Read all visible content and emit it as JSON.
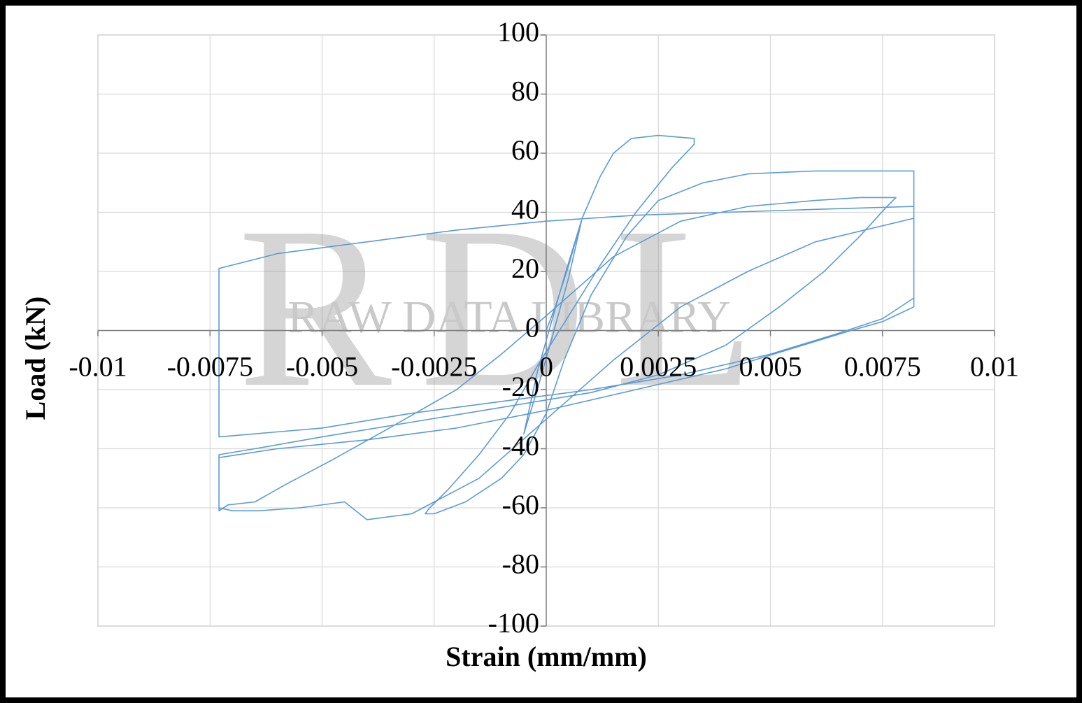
{
  "chart_data": {
    "type": "line",
    "x_label": "Strain (mm/mm)",
    "y_label": "Load (kN)",
    "watermark": {
      "logo": "RDL",
      "text": "RAW DATA LIBRARY"
    },
    "xlim": [
      -0.01,
      0.01
    ],
    "ylim": [
      -100,
      100
    ],
    "xticks": [
      -0.01,
      -0.0075,
      -0.005,
      -0.0025,
      0,
      0.0025,
      0.005,
      0.0075,
      0.01
    ],
    "yticks": [
      -100,
      -80,
      -60,
      -40,
      -20,
      0,
      20,
      40,
      60,
      80,
      100
    ],
    "grid": true,
    "series": [
      {
        "color": "#5b9bd5",
        "x": [
          0,
          0.0002,
          0.0005,
          0.0008,
          0.0004,
          0.0001,
          -0.0002,
          -0.0004,
          -0.0005,
          -0.0002,
          0.0001,
          0.0005,
          0.0008,
          0.0012,
          0.0015,
          0.0019,
          0.0025,
          0.0033,
          0.0033,
          0.0028,
          0.002,
          0.0012,
          0.0005,
          -0.0002,
          -0.0008,
          -0.0015,
          -0.0022,
          -0.0026,
          -0.0027,
          -0.0025,
          -0.0018,
          -0.001,
          -0.0005,
          0,
          0.0004,
          0.001,
          0.0018,
          0.0025,
          0.0035,
          0.0045,
          0.006,
          0.0072,
          0.0082,
          0.0082,
          0.0075,
          0.0068,
          0.0055,
          0.004,
          0.002,
          0,
          -0.002,
          -0.004,
          -0.006,
          -0.0073,
          -0.0073,
          -0.0071,
          -0.0065,
          -0.0058,
          -0.0048,
          -0.0035,
          -0.002,
          -0.001,
          0,
          0.0015,
          0.003,
          0.0045,
          0.006,
          0.007,
          0.0078,
          0.0076,
          0.007,
          0.0062,
          0.0052,
          0.004,
          0.0025,
          0.001,
          -0.001,
          -0.003,
          -0.005,
          -0.0065,
          -0.0073,
          -0.0073,
          -0.007,
          -0.0064,
          -0.0055,
          -0.0045,
          -0.004,
          -0.003,
          -0.0015,
          0,
          0.0015,
          0.003,
          0.0045,
          0.006,
          0.0082,
          0.0082,
          0.0075,
          0.0065,
          0.005,
          0.003,
          0.001,
          -0.001,
          -0.003,
          -0.005,
          -0.0073,
          -0.0073,
          -0.0073,
          -0.006,
          -0.004,
          -0.002,
          0,
          0.002,
          0.004,
          0.006,
          0.0082
        ],
        "y": [
          0,
          8,
          22,
          38,
          18,
          2,
          -14,
          -28,
          -35,
          -20,
          -4,
          18,
          38,
          52,
          60,
          65,
          66,
          65,
          63,
          55,
          40,
          22,
          5,
          -12,
          -28,
          -42,
          -54,
          -60,
          -62,
          -62,
          -58,
          -50,
          -42,
          -28,
          -10,
          12,
          32,
          44,
          50,
          53,
          54,
          54,
          54,
          8,
          3,
          0,
          -6,
          -13,
          -20,
          -27,
          -33,
          -37,
          -40,
          -43,
          -61,
          -59,
          -58,
          -52,
          -44,
          -33,
          -20,
          -8,
          5,
          25,
          37,
          42,
          44,
          45,
          45,
          42,
          32,
          20,
          8,
          -5,
          -15,
          -21,
          -26,
          -31,
          -36,
          -40,
          -42,
          -60,
          -61,
          -61,
          -60,
          -58,
          -64,
          -62,
          -50,
          -30,
          -10,
          8,
          20,
          30,
          38,
          11,
          4,
          -1,
          -8,
          -15,
          -20,
          -24,
          -28,
          -33,
          -36,
          -2,
          21,
          26,
          30,
          34,
          37,
          39,
          40,
          41,
          42
        ]
      }
    ]
  }
}
